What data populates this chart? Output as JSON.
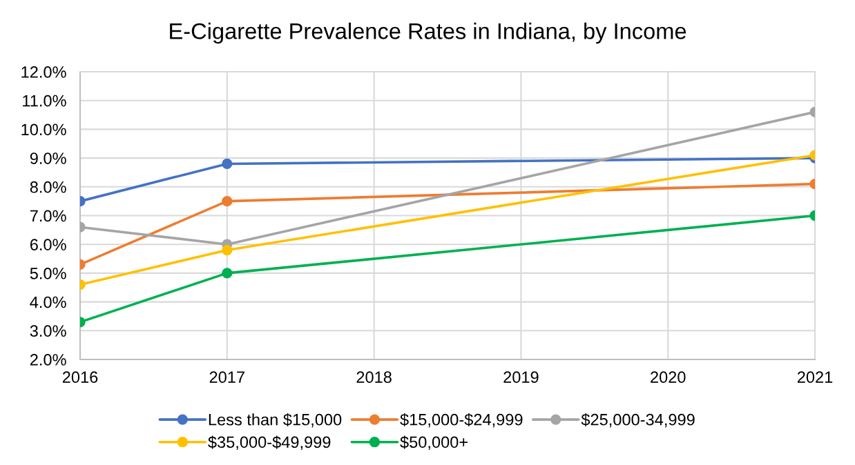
{
  "chart_data": {
    "type": "line",
    "title": "E-Cigarette Prevalence Rates in Indiana, by Income",
    "x": [
      2016,
      2017,
      2021
    ],
    "xlim": [
      2016,
      2021
    ],
    "xticks": [
      2016,
      2017,
      2018,
      2019,
      2020,
      2021
    ],
    "ylim": [
      2,
      12
    ],
    "yticks": [
      {
        "value": 2,
        "label": "2.0%"
      },
      {
        "value": 3,
        "label": "3.0%"
      },
      {
        "value": 4,
        "label": "4.0%"
      },
      {
        "value": 5,
        "label": "5.0%"
      },
      {
        "value": 6,
        "label": "6.0%"
      },
      {
        "value": 7,
        "label": "7.0%"
      },
      {
        "value": 8,
        "label": "8.0%"
      },
      {
        "value": 9,
        "label": "9.0%"
      },
      {
        "value": 10,
        "label": "10.0%"
      },
      {
        "value": 11,
        "label": "11.0%"
      },
      {
        "value": 12,
        "label": "12.0%"
      }
    ],
    "grid": true,
    "legend": "bottom",
    "marker": "circle",
    "line_style": "solid",
    "series": [
      {
        "name": "Less than $15,000",
        "color": "#4472c4",
        "values": [
          7.5,
          8.8,
          9.0
        ]
      },
      {
        "name": "$15,000-$24,999",
        "color": "#ed7d31",
        "values": [
          5.3,
          7.5,
          8.1
        ]
      },
      {
        "name": "$25,000-34,999",
        "color": "#a5a5a5",
        "values": [
          6.6,
          6.0,
          10.6
        ]
      },
      {
        "name": "$35,000-$49,999",
        "color": "#ffc000",
        "values": [
          4.6,
          5.8,
          9.1
        ]
      },
      {
        "name": "$50,000+",
        "color": "#00b050",
        "values": [
          3.3,
          5.0,
          7.0
        ]
      }
    ]
  }
}
